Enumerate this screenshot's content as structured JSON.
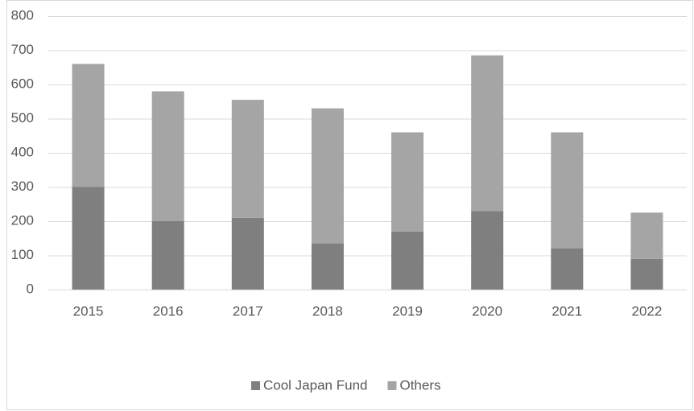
{
  "chart_data": {
    "type": "bar",
    "stacked": true,
    "categories": [
      "2015",
      "2016",
      "2017",
      "2018",
      "2019",
      "2020",
      "2021",
      "2022"
    ],
    "series": [
      {
        "name": "Cool Japan Fund",
        "color": "#7f7f7f",
        "values": [
          300,
          200,
          210,
          135,
          170,
          230,
          120,
          90
        ]
      },
      {
        "name": "Others",
        "color": "#a5a5a5",
        "values": [
          360,
          380,
          345,
          395,
          290,
          455,
          340,
          135
        ]
      }
    ],
    "ylim": [
      0,
      800
    ],
    "yticks": [
      0,
      100,
      200,
      300,
      400,
      500,
      600,
      700,
      800
    ],
    "grid": true,
    "legend": "bottom"
  }
}
